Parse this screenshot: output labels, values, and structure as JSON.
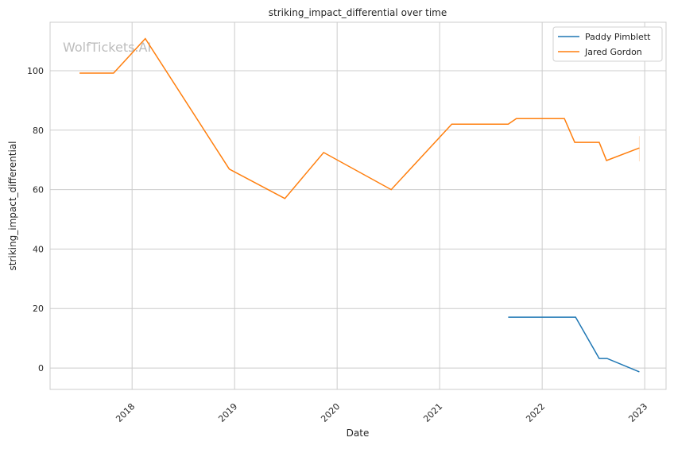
{
  "chart_data": {
    "type": "line",
    "title": "striking_impact_differential over time",
    "xlabel": "Date",
    "ylabel": "striking_impact_differential",
    "watermark": "WolfTickets.AI",
    "xlim": [
      "2017-03-15",
      "2023-03-18"
    ],
    "ylim": [
      -7.2,
      116.3
    ],
    "xticks": [
      "2018",
      "2019",
      "2020",
      "2021",
      "2022",
      "2023"
    ],
    "yticks": [
      0,
      20,
      40,
      60,
      80,
      100
    ],
    "grid": true,
    "legend_placement": "top-right",
    "series": [
      {
        "name": "Paddy Pimblett",
        "color": "#1f77b4",
        "x": [
          "2021-09-02",
          "2022-04-30",
          "2022-07-23",
          "2022-08-20",
          "2022-12-13"
        ],
        "y": [
          17.1,
          17.1,
          3.2,
          3.2,
          -1.3
        ]
      },
      {
        "name": "Jared Gordon",
        "color": "#ff7f0e",
        "x": [
          "2017-06-28",
          "2017-10-27",
          "2018-02-17",
          "2018-12-13",
          "2019-06-29",
          "2019-11-14",
          "2020-07-12",
          "2021-02-13",
          "2021-09-02",
          "2021-10-01",
          "2022-03-21",
          "2022-04-27",
          "2022-07-23",
          "2022-08-18",
          "2022-12-13"
        ],
        "y": [
          99.2,
          99.2,
          110.8,
          66.9,
          57.0,
          72.5,
          60.0,
          82.0,
          82.0,
          83.9,
          83.9,
          75.9,
          75.9,
          69.8,
          74.0
        ]
      }
    ]
  }
}
